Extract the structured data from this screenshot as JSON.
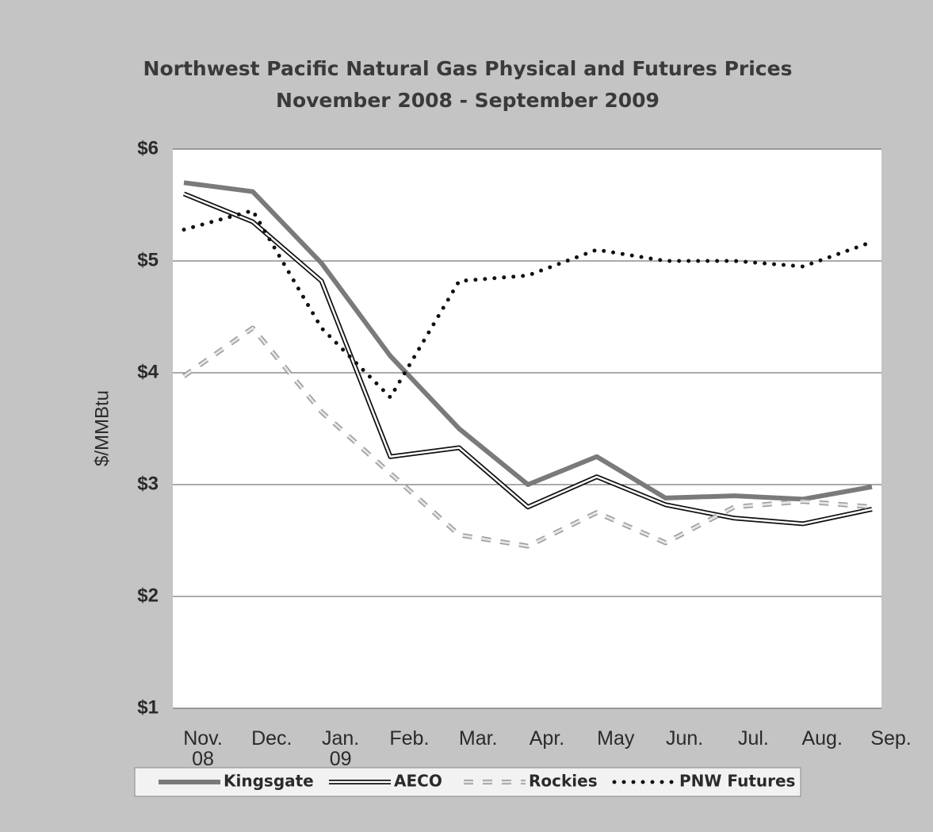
{
  "chart_data": {
    "type": "line",
    "title": "Northwest Pacific  Natural Gas Physical and Futures Prices",
    "subtitle": "November 2008 - September 2009",
    "y_label": "$/MMBtu",
    "categories": [
      "Nov. 08",
      "Dec.",
      "Jan. 09",
      "Feb.",
      "Mar.",
      "Apr.",
      "May",
      "Jun.",
      "Jul.",
      "Aug.",
      "Sep."
    ],
    "ylim": [
      1,
      6
    ],
    "yticks": [
      {
        "value": 1,
        "label": "$1"
      },
      {
        "value": 2,
        "label": "$2"
      },
      {
        "value": 3,
        "label": "$3"
      },
      {
        "value": 4,
        "label": "$4"
      },
      {
        "value": 5,
        "label": "$5"
      },
      {
        "value": 6,
        "label": "$6"
      }
    ],
    "grid": true,
    "legend": "bottom",
    "series": [
      {
        "name": "Kingsgate",
        "color": "#7a7a7a",
        "values": [
          5.7,
          5.62,
          4.98,
          4.15,
          3.5,
          3.0,
          3.25,
          2.88,
          2.9,
          2.87,
          2.98
        ]
      },
      {
        "name": "AECO",
        "color": "#111111",
        "values": [
          5.6,
          5.35,
          4.82,
          3.25,
          3.33,
          2.8,
          3.07,
          2.82,
          2.7,
          2.65,
          2.78
        ]
      },
      {
        "name": "Rockies",
        "color": "#b0b0b0",
        "values": [
          3.97,
          4.4,
          3.65,
          3.1,
          2.55,
          2.45,
          2.75,
          2.48,
          2.8,
          2.85,
          2.8
        ]
      },
      {
        "name": "PNW Futures",
        "color": "#111111",
        "values": [
          5.28,
          5.45,
          4.4,
          3.78,
          4.82,
          4.87,
          5.1,
          5.0,
          5.0,
          4.95,
          5.17
        ]
      }
    ]
  }
}
